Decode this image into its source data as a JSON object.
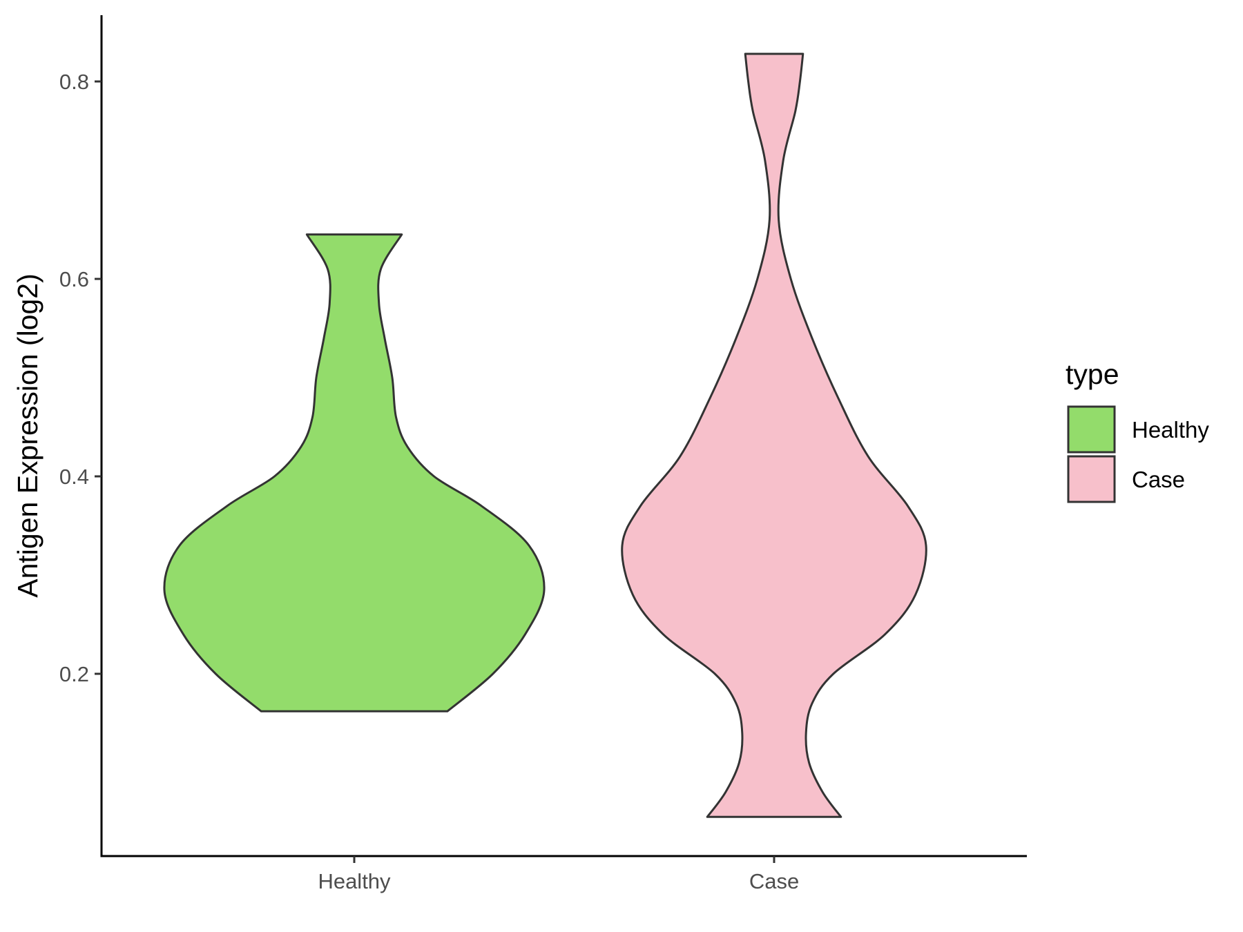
{
  "chart_data": {
    "type": "violin",
    "title": "",
    "xlabel": "",
    "ylabel": "Antigen Expression (log2)",
    "categories": [
      "Healthy",
      "Case"
    ],
    "ylim": [
      0.02,
      0.87
    ],
    "yticks": [
      0.2,
      0.4,
      0.6,
      0.8
    ],
    "ytick_labels": [
      "0.2",
      "0.4",
      "0.6",
      "0.8"
    ],
    "legend": {
      "title": "type",
      "position": "right",
      "entries": [
        {
          "label": "Healthy",
          "color": "#93dc6b"
        },
        {
          "label": "Case",
          "color": "#f7c0cb"
        }
      ]
    },
    "series": [
      {
        "name": "Healthy",
        "color": "#93dc6b",
        "min": 0.162,
        "max": 0.645,
        "density_profile": [
          {
            "y": 0.162,
            "w": 0.49
          },
          {
            "y": 0.2,
            "w": 0.73
          },
          {
            "y": 0.24,
            "w": 0.9
          },
          {
            "y": 0.285,
            "w": 1.0
          },
          {
            "y": 0.33,
            "w": 0.92
          },
          {
            "y": 0.37,
            "w": 0.67
          },
          {
            "y": 0.4,
            "w": 0.42
          },
          {
            "y": 0.43,
            "w": 0.28
          },
          {
            "y": 0.46,
            "w": 0.22
          },
          {
            "y": 0.5,
            "w": 0.2
          },
          {
            "y": 0.54,
            "w": 0.16
          },
          {
            "y": 0.575,
            "w": 0.13
          },
          {
            "y": 0.61,
            "w": 0.14
          },
          {
            "y": 0.645,
            "w": 0.25
          }
        ]
      },
      {
        "name": "Case",
        "color": "#f7c0cb",
        "min": 0.055,
        "max": 0.828,
        "density_profile": [
          {
            "y": 0.055,
            "w": 0.44
          },
          {
            "y": 0.08,
            "w": 0.32
          },
          {
            "y": 0.11,
            "w": 0.23
          },
          {
            "y": 0.14,
            "w": 0.21
          },
          {
            "y": 0.17,
            "w": 0.25
          },
          {
            "y": 0.2,
            "w": 0.39
          },
          {
            "y": 0.24,
            "w": 0.73
          },
          {
            "y": 0.28,
            "w": 0.93
          },
          {
            "y": 0.33,
            "w": 1.0
          },
          {
            "y": 0.37,
            "w": 0.88
          },
          {
            "y": 0.42,
            "w": 0.62
          },
          {
            "y": 0.48,
            "w": 0.42
          },
          {
            "y": 0.54,
            "w": 0.25
          },
          {
            "y": 0.6,
            "w": 0.11
          },
          {
            "y": 0.66,
            "w": 0.03
          },
          {
            "y": 0.72,
            "w": 0.06
          },
          {
            "y": 0.77,
            "w": 0.14
          },
          {
            "y": 0.8,
            "w": 0.17
          },
          {
            "y": 0.828,
            "w": 0.19
          }
        ]
      }
    ]
  }
}
